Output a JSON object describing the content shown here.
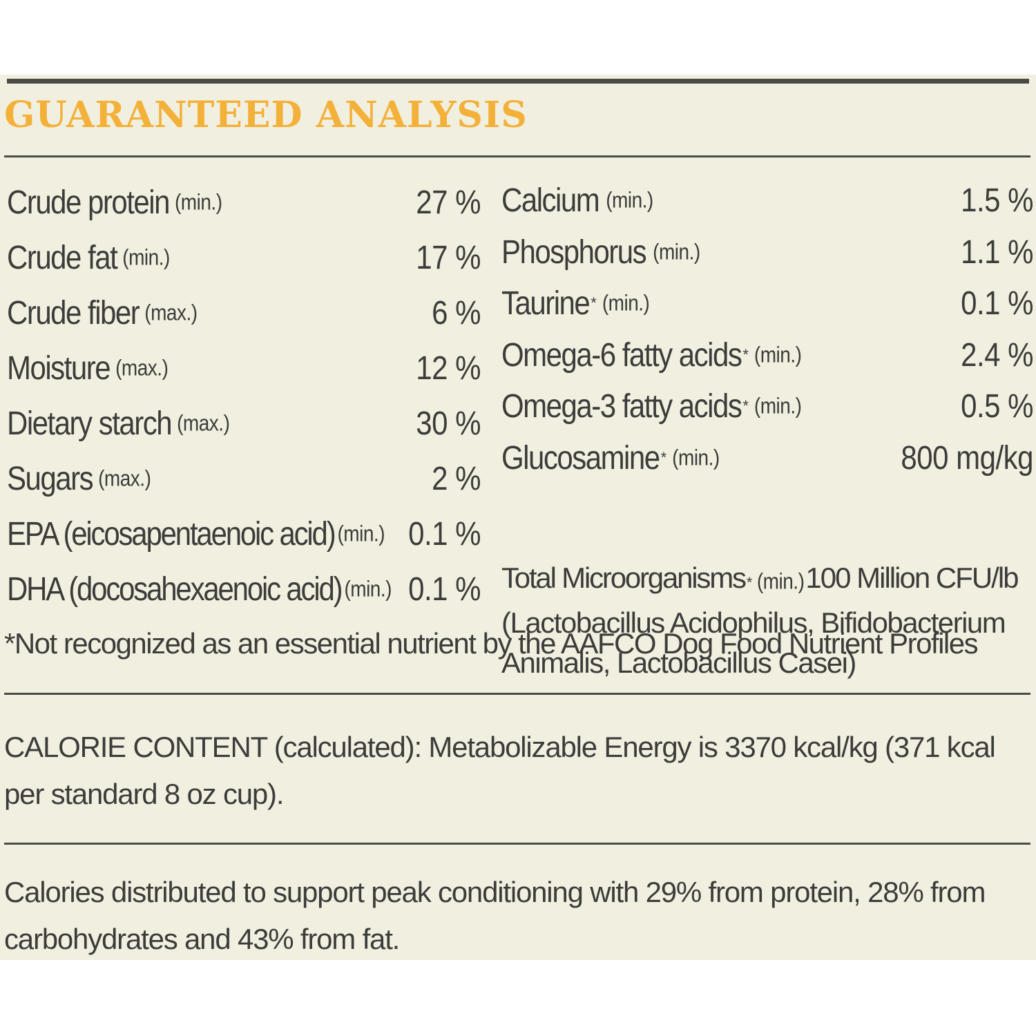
{
  "header": {
    "title": "GUARANTEED ANALYSIS"
  },
  "left_nutrients": [
    {
      "name": "Crude protein",
      "qualifier": "(min.)",
      "value": "27 %"
    },
    {
      "name": "Crude fat",
      "qualifier": "(min.)",
      "value": "17 %"
    },
    {
      "name": "Crude fiber",
      "qualifier": "(max.)",
      "value": "6 %"
    },
    {
      "name": "Moisture",
      "qualifier": "(max.)",
      "value": "12 %"
    },
    {
      "name": "Dietary starch",
      "qualifier": "(max.)",
      "value": "30 %"
    },
    {
      "name": "Sugars",
      "qualifier": "(max.)",
      "value": "2 %"
    },
    {
      "name": "EPA (eicosapentaenoic acid)",
      "qualifier": "(min.)",
      "value": "0.1 %"
    },
    {
      "name": "DHA (docosahexaenoic acid)",
      "qualifier": "(min.)",
      "value": "0.1 %"
    }
  ],
  "right_nutrients": [
    {
      "name": "Calcium",
      "asterisk": "",
      "qualifier": "(min.)",
      "value": "1.5 %"
    },
    {
      "name": "Phosphorus",
      "asterisk": "",
      "qualifier": "(min.)",
      "value": "1.1 %"
    },
    {
      "name": "Taurine",
      "asterisk": "*",
      "qualifier": "(min.)",
      "value": "0.1 %"
    },
    {
      "name": "Omega-6 fatty acids",
      "asterisk": "*",
      "qualifier": "(min.)",
      "value": "2.4 %"
    },
    {
      "name": "Omega-3 fatty acids",
      "asterisk": "*",
      "qualifier": "(min.)",
      "value": "0.5 %"
    },
    {
      "name": "Glucosamine",
      "asterisk": "*",
      "qualifier": "(min.)",
      "value": "800 mg/kg"
    }
  ],
  "microorganisms": {
    "name": "Total Microorganisms",
    "asterisk": "*",
    "qualifier": "(min.)",
    "value": "100 Million CFU/lb",
    "description": "(Lactobacillus Acidophilus, Bifidobacterium Animalis, Lactobacillus Casei)"
  },
  "footnote": "*Not recognized as an essential nutrient by the AAFCO Dog Food Nutrient Profiles",
  "calorie_content": "CALORIE CONTENT (calculated): Metabolizable Energy is 3370 kcal/kg (371 kcal per standard 8 oz cup).",
  "calorie_distribution": "Calories distributed to support peak conditioning with 29% from protein, 28% from carbohydrates and 43% from fat."
}
